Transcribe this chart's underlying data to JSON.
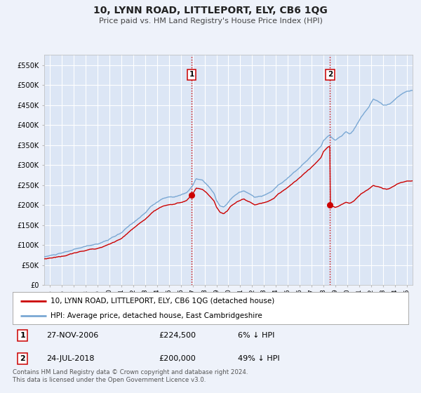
{
  "title": "10, LYNN ROAD, LITTLEPORT, ELY, CB6 1QG",
  "subtitle": "Price paid vs. HM Land Registry's House Price Index (HPI)",
  "background_color": "#eef2fa",
  "plot_bg_color": "#dce6f5",
  "grid_color": "#ffffff",
  "hpi_color": "#7aa8d4",
  "price_color": "#cc0000",
  "sale1_date": 2006.9,
  "sale1_price": 224500,
  "sale2_date": 2018.55,
  "sale2_price": 200000,
  "legend_label_price": "10, LYNN ROAD, LITTLEPORT, ELY, CB6 1QG (detached house)",
  "legend_label_hpi": "HPI: Average price, detached house, East Cambridgeshire",
  "footer": "Contains HM Land Registry data © Crown copyright and database right 2024.\nThis data is licensed under the Open Government Licence v3.0.",
  "ylim": [
    0,
    575000
  ],
  "yticks": [
    0,
    50000,
    100000,
    150000,
    200000,
    250000,
    300000,
    350000,
    400000,
    450000,
    500000,
    550000
  ],
  "ytick_labels": [
    "£0",
    "£50K",
    "£100K",
    "£150K",
    "£200K",
    "£250K",
    "£300K",
    "£350K",
    "£400K",
    "£450K",
    "£500K",
    "£550K"
  ],
  "xlim_start": 1994.5,
  "xlim_end": 2025.5,
  "xticks": [
    1995,
    1996,
    1997,
    1998,
    1999,
    2000,
    2001,
    2002,
    2003,
    2004,
    2005,
    2006,
    2007,
    2008,
    2009,
    2010,
    2011,
    2012,
    2013,
    2014,
    2015,
    2016,
    2017,
    2018,
    2019,
    2020,
    2021,
    2022,
    2023,
    2024,
    2025
  ]
}
